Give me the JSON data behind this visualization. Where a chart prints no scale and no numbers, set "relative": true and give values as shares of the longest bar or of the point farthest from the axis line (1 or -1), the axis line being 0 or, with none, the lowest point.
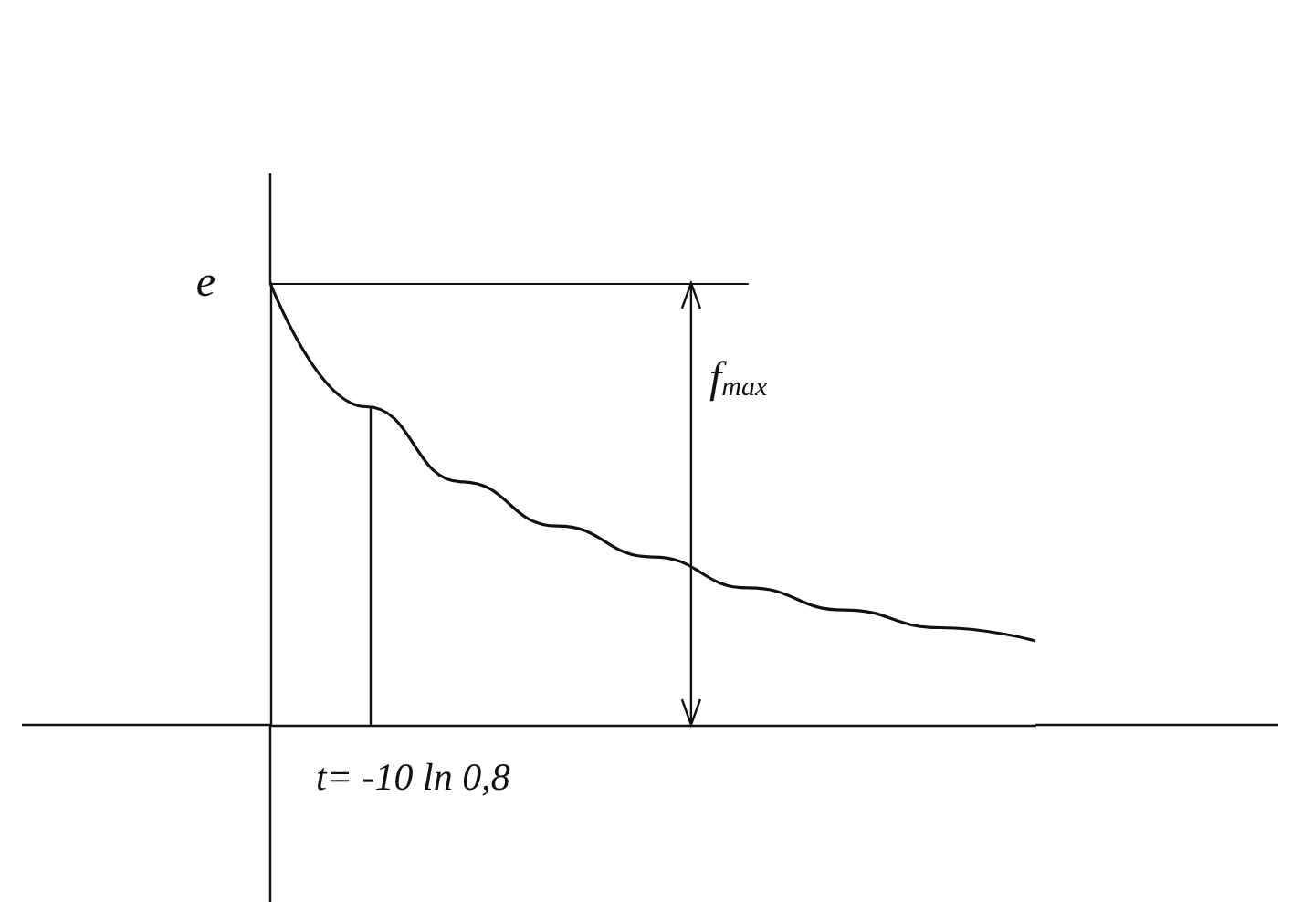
{
  "chart_data": {
    "type": "line",
    "relative": true,
    "categories": [
      null,
      null,
      null,
      null,
      null,
      null,
      null,
      null,
      null
    ],
    "series": [
      {
        "color": "#111111",
        "values": [
          1.0,
          0.72,
          0.55,
          0.45,
          0.38,
          0.31,
          0.26,
          0.22,
          0.19
        ]
      }
    ],
    "ref_lines": [
      {
        "axis": "y",
        "value": 1,
        "label": "e"
      }
    ],
    "annotations": [
      "f$_{max}$",
      "t= -10 ln 0,8"
    ],
    "marker": "none",
    "grid": false
  }
}
